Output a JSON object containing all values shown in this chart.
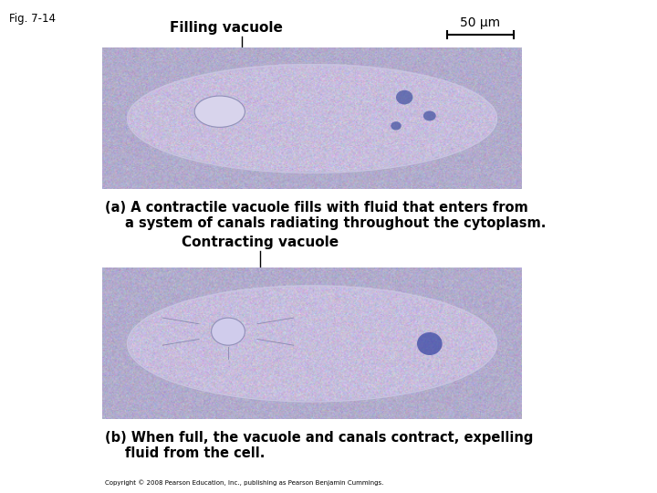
{
  "fig_label": "Fig. 7-14",
  "scale_bar_text": "50 μm",
  "label_filling": "Filling vacuole",
  "label_contracting": "Contracting vacuole",
  "caption_a_line1": "(a) A contractile vacuole fills with fluid that enters from",
  "caption_a_line2": "a system of canals radiating throughout the cytoplasm.",
  "caption_b_line1": "(b) When full, the vacuole and canals contract, expelling",
  "caption_b_line2": "fluid from the cell.",
  "copyright": "Copyright © 2008 Pearson Education, Inc., publishing as Pearson Benjamin Cummings.",
  "bg_color": "#ffffff",
  "fig_width": 7.2,
  "fig_height": 5.4,
  "dpi": 100
}
